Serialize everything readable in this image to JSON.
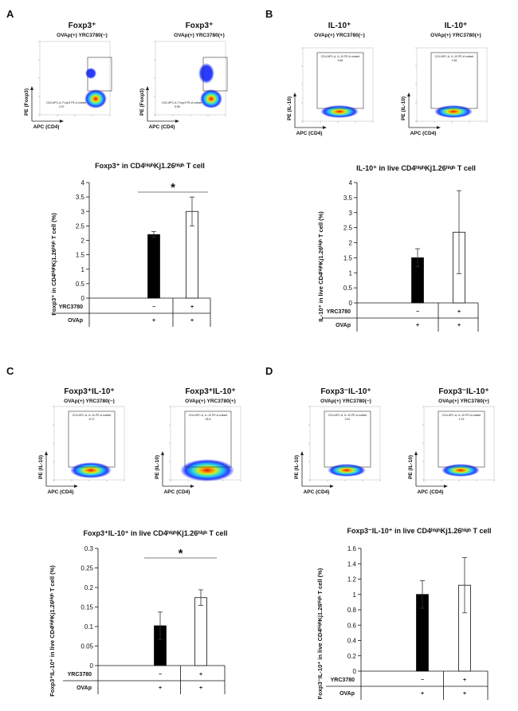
{
  "panels": [
    {
      "letter": "A",
      "flow": [
        {
          "title": "Foxp3⁺",
          "subtitle": "OVAp(+) YRC3780(−)",
          "gate_label": "CD4 APC-A, Foxp3 PE-A subset",
          "gate_value": "2.97",
          "xlabel": "APC (CD4)",
          "ylabel": "PE (Foxp3)"
        },
        {
          "title": "Foxp3⁺",
          "subtitle": "OVAp(+) YRC3780(+)",
          "gate_label": "CD4 APC-A, Foxp3 PE-A subset",
          "gate_value": "5.56",
          "xlabel": "APC (CD4)",
          "ylabel": "PE (Foxp3)"
        }
      ],
      "chart_data": {
        "type": "bar",
        "title": "Foxp3⁺ in CD4ʰⁱᵍʰKj1.26ʰⁱᵍʰ T cell",
        "ylabel": "Foxp3⁺ in CD4ʰⁱᵍʰKj1.26ʰⁱᵍʰ T cell (%)",
        "ylim": [
          0,
          4
        ],
        "yticks": [
          "0",
          "0.5",
          "1",
          "1.5",
          "2",
          "2.5",
          "3",
          "3.5",
          "4"
        ],
        "values": [
          2.2,
          3.0
        ],
        "errors": [
          0.1,
          0.5
        ],
        "significance": "*",
        "rows": [
          {
            "label": "YRC3780",
            "cells": [
              "−",
              "+"
            ]
          },
          {
            "label": "OVAp",
            "cells": [
              "+",
              "+"
            ]
          }
        ]
      }
    },
    {
      "letter": "B",
      "flow": [
        {
          "title": "IL-10⁺",
          "subtitle": "OVAp(+) YRC3780(−)",
          "gate_label": "CD4 APC-A, IL-10 PE-A subset",
          "gate_value": "0.84",
          "xlabel": "APC (CD4)",
          "ylabel": "PE (IL-10)"
        },
        {
          "title": "IL-10⁺",
          "subtitle": "OVAp(+) YRC3780(+)",
          "gate_label": "CD4 APC-A, IL-10 PE-A subset",
          "gate_value": "1.66",
          "xlabel": "APC (CD4)",
          "ylabel": "PE (IL-10)"
        }
      ],
      "chart_data": {
        "type": "bar",
        "title": "IL-10⁺ in live CD4ʰⁱᵍʰKj1.26ʰⁱᵍʰ T cell",
        "ylabel": "IL-10⁺ in live CD4ʰⁱᵍʰKj1.26ʰⁱᵍʰ T cell (%)",
        "ylim": [
          0,
          4
        ],
        "yticks": [
          "0",
          "0.5",
          "1",
          "1.5",
          "2",
          "2.5",
          "3",
          "3.5",
          "4"
        ],
        "values": [
          1.5,
          2.35
        ],
        "errors": [
          0.3,
          1.38
        ],
        "significance": "",
        "rows": [
          {
            "label": "YRC3780",
            "cells": [
              "−",
              "+"
            ]
          },
          {
            "label": "OVAp",
            "cells": [
              "+",
              "+"
            ]
          }
        ]
      }
    },
    {
      "letter": "C",
      "flow": [
        {
          "title": "Foxp3⁺IL-10⁺",
          "subtitle": "OVAp(+) YRC3780(−)",
          "gate_label": "CD4 APC-A, IL-10 PE-A subset",
          "gate_value": "8.72",
          "xlabel": "APC (CD4)",
          "ylabel": "PE (IL-10)"
        },
        {
          "title": "Foxp3⁺IL-10⁺",
          "subtitle": "OVAp(+) YRC3780(+)",
          "gate_label": "CD4 APC-A, IL-10 PE-A subset",
          "gate_value": "18.6",
          "xlabel": "APC (CD4)",
          "ylabel": "PE (IL-10)"
        }
      ],
      "chart_data": {
        "type": "bar",
        "title": "Foxp3⁺IL-10⁺ in live CD4ʰⁱᵍʰKj1.26ʰⁱᵍʰ T cell",
        "ylabel": "Foxp3⁺IL-10⁺ in live CD4ʰⁱᵍʰKj1.26ʰⁱᵍʰ T cell (%)",
        "ylim": [
          0,
          0.3
        ],
        "yticks": [
          "0",
          "0.05",
          "0.1",
          "0.15",
          "0.2",
          "0.25",
          "0.3"
        ],
        "values": [
          0.102,
          0.174
        ],
        "errors": [
          0.035,
          0.02
        ],
        "significance": "*",
        "rows": [
          {
            "label": "YRC3780",
            "cells": [
              "−",
              "+"
            ]
          },
          {
            "label": "OVAp",
            "cells": [
              "+",
              "+"
            ]
          }
        ]
      }
    },
    {
      "letter": "D",
      "flow": [
        {
          "title": "Foxp3⁻IL-10⁺",
          "subtitle": "OVAp(+) YRC3780(−)",
          "gate_label": "CD4 APC-A, IL-10 PE-A subset",
          "gate_value": "0.61",
          "xlabel": "APC (CD4)",
          "ylabel": "PE (IL-10)"
        },
        {
          "title": "Foxp3⁻IL-10⁺",
          "subtitle": "OVAp(+) YRC3780(+)",
          "gate_label": "CD4 APC-A, IL-10 PE-A subset",
          "gate_value": "1.02",
          "xlabel": "APC (CD4)",
          "ylabel": "PE (IL-10)"
        }
      ],
      "chart_data": {
        "type": "bar",
        "title": "Foxp3⁻IL-10⁺ in live CD4ʰⁱᵍʰKj1.26ʰⁱᵍʰ T cell",
        "ylabel": "Foxp3⁻IL-10⁺ in live CD4ʰⁱᵍʰKj1.26ʰⁱᵍʰ T cell (%)",
        "ylim": [
          0,
          1.6
        ],
        "yticks": [
          "0",
          "0.2",
          "0.4",
          "0.6",
          "0.8",
          "1",
          "1.2",
          "1.4",
          "1.6"
        ],
        "values": [
          1.0,
          1.12
        ],
        "errors": [
          0.18,
          0.36
        ],
        "significance": "",
        "rows": [
          {
            "label": "YRC3780",
            "cells": [
              "−",
              "+"
            ]
          },
          {
            "label": "OVAp",
            "cells": [
              "+",
              "+"
            ]
          }
        ]
      }
    }
  ],
  "colors": {
    "bar_control": "#000000",
    "bar_treated": "#ffffff",
    "density_low": "#2a3cff",
    "density_mid": "#22d3f0",
    "density_high1": "#c8ef27",
    "density_high2": "#ff8a00",
    "density_peak": "#e01010"
  }
}
